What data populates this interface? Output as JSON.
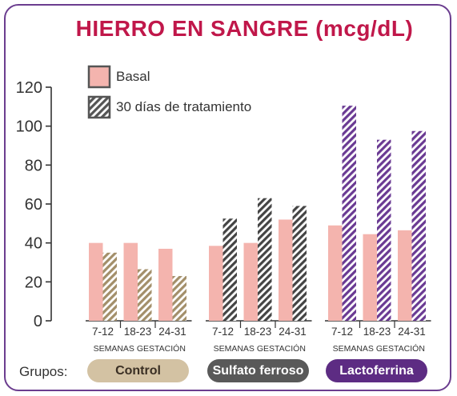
{
  "chart_data": {
    "type": "bar",
    "title": "HIERRO EN SANGRE (mcg/dL)",
    "ylim": [
      0,
      120
    ],
    "yticks": [
      0,
      20,
      40,
      60,
      80,
      100,
      120
    ],
    "legend": {
      "placement": "top-left",
      "items": [
        "Basal",
        "30 días de tratamiento"
      ]
    },
    "groups": [
      {
        "name": "Control",
        "color": "#d3c2a3",
        "pill_text": "#3a2f24",
        "hatch_color": "#a38f6a",
        "categories": [
          "7-12",
          "18-23",
          "24-31"
        ],
        "sublabel": "SEMANAS GESTACIÓN",
        "basal": [
          40,
          40,
          37
        ],
        "tratamiento": [
          35,
          26.5,
          23
        ]
      },
      {
        "name": "Sulfato ferroso",
        "color": "#595959",
        "pill_text": "#ffffff",
        "hatch_color": "#444444",
        "categories": [
          "7-12",
          "18-23",
          "24-31"
        ],
        "sublabel": "SEMANAS GESTACIÓN",
        "basal": [
          38.5,
          40,
          52
        ],
        "tratamiento": [
          52.5,
          63,
          59
        ]
      },
      {
        "name": "Lactoferrina",
        "color": "#5d2c83",
        "pill_text": "#ffffff",
        "hatch_color": "#6a3a93",
        "categories": [
          "7-12",
          "18-23",
          "24-31"
        ],
        "sublabel": "SEMANAS GESTACIÓN",
        "basal": [
          49,
          44.5,
          46.5
        ],
        "tratamiento": [
          110.5,
          93,
          97.5
        ]
      }
    ],
    "colors": {
      "basal": "#f4b4ae",
      "title": "#c0174a",
      "frame": "#6b3d8f",
      "axis": "#333333"
    }
  },
  "footer": {
    "label": "Grupos:"
  }
}
